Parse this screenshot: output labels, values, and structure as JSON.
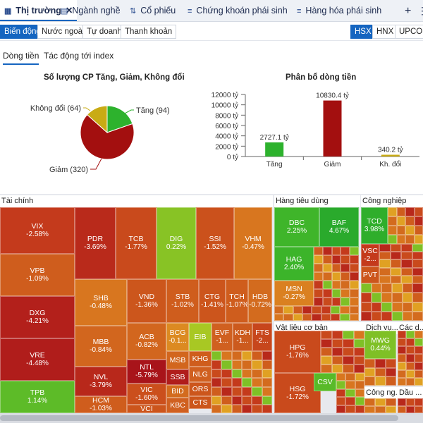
{
  "tabs": [
    {
      "label": "Thị trường",
      "icon": "grid-icon"
    },
    {
      "label": "Ngành nghề",
      "icon": "table-icon"
    },
    {
      "label": "Cổ phiếu",
      "icon": "sort-icon"
    },
    {
      "label": "Chứng khoán phái sinh",
      "icon": "list-number-icon"
    },
    {
      "label": "Hàng hóa phái sinh",
      "icon": "list-number-icon"
    }
  ],
  "add_tab": "+",
  "more": "⋮",
  "subnav": [
    "Biến động",
    "Nước ngoài",
    "Tự doanh",
    "Thanh khoản"
  ],
  "exchanges": [
    "HSX",
    "HNX",
    "UPCOM"
  ],
  "inner_tabs": [
    "Dòng tiền",
    "Tác động tới index"
  ],
  "pie": {
    "title": "Số lượng CP Tăng, Giảm, Không đổi",
    "labels": [
      "Tăng (94)",
      "Giảm (320)",
      "Không đổi (64)"
    ],
    "colors": {
      "tang": "#2db22d",
      "giam": "#a30f0f",
      "khongdoi": "#c9ab14"
    }
  },
  "chart_data": [
    {
      "type": "pie",
      "title": "Số lượng CP Tăng, Giảm, Không đổi",
      "categories": [
        "Tăng",
        "Giảm",
        "Không đổi"
      ],
      "values": [
        94,
        320,
        64
      ]
    },
    {
      "type": "bar",
      "title": "Phân bổ dòng tiền",
      "categories": [
        "Tăng",
        "Giảm",
        "Kh. đổi"
      ],
      "values": [
        2727.1,
        10830.4,
        340.2
      ],
      "data_labels": [
        "2727.1 tỷ",
        "10830.4 tỷ",
        "340.2 tỷ"
      ],
      "yticks": [
        "0 tỷ",
        "2000 tỷ",
        "4000 tỷ",
        "6000 tỷ",
        "8000 tỷ",
        "10000 tỷ",
        "12000 tỷ"
      ],
      "ylim": [
        0,
        12000
      ],
      "colors": [
        "#2db22d",
        "#a30f0f",
        "#c9ab14"
      ]
    }
  ],
  "sectors": [
    "Tài chính",
    "Hàng tiêu dùng",
    "Công nghiệp",
    "Vật liệu cơ bản",
    "Dịch vụ...",
    "Các d...",
    "Công ng...",
    "Dầu ..."
  ],
  "cells": [
    {
      "t": "VIX",
      "p": "-2.58%",
      "c": "#c43a1c"
    },
    {
      "t": "VPB",
      "p": "-1.09%",
      "c": "#cf5d1d"
    },
    {
      "t": "DXG",
      "p": "-4.21%",
      "c": "#b3201b"
    },
    {
      "t": "VRE",
      "p": "-4.48%",
      "c": "#b01d1b"
    },
    {
      "t": "TPB",
      "p": "1.14%",
      "c": "#5dbb28"
    },
    {
      "t": "PDR",
      "p": "-3.69%",
      "c": "#b92a1b"
    },
    {
      "t": "TCB",
      "p": "-1.77%",
      "c": "#c94a1c"
    },
    {
      "t": "DIG",
      "p": "0.22%",
      "c": "#88c325"
    },
    {
      "t": "SSI",
      "p": "-1.52%",
      "c": "#cb511c"
    },
    {
      "t": "VHM",
      "p": "-0.47%",
      "c": "#d8761f"
    },
    {
      "t": "SHB",
      "p": "-0.48%",
      "c": "#d8761f"
    },
    {
      "t": "VND",
      "p": "-1.36%",
      "c": "#cc561c"
    },
    {
      "t": "STB",
      "p": "-1.02%",
      "c": "#cf5d1d"
    },
    {
      "t": "CTG",
      "p": "-1.41%",
      "c": "#cc551c"
    },
    {
      "t": "TCH",
      "p": "-1.07%",
      "c": "#cf5d1d"
    },
    {
      "t": "HDB",
      "p": "-0.72%",
      "c": "#d36b1e"
    },
    {
      "t": "MBB",
      "p": "-0.84%",
      "c": "#d2661e"
    },
    {
      "t": "ACB",
      "p": "-0.82%",
      "c": "#d2661e"
    },
    {
      "t": "BCG",
      "p": "-0.1...",
      "c": "#dc8a21"
    },
    {
      "t": "EIB",
      "p": "",
      "c": "#a8c823"
    },
    {
      "t": "EVF",
      "p": "-1...",
      "c": "#d06020"
    },
    {
      "t": "KDH",
      "p": "-1...",
      "c": "#cc5a1d"
    },
    {
      "t": "FTS",
      "p": "-2...",
      "c": "#c7461c"
    },
    {
      "t": "NVL",
      "p": "-3.79%",
      "c": "#b8281b"
    },
    {
      "t": "NTL",
      "p": "-5.79%",
      "c": "#a8141a"
    },
    {
      "t": "MSB",
      "p": "",
      "c": "#d2661e"
    },
    {
      "t": "KHG",
      "p": "",
      "c": "#cf5d1d"
    },
    {
      "t": "VIC",
      "p": "-1.60%",
      "c": "#cb4f1c"
    },
    {
      "t": "SSB",
      "p": "",
      "c": "#b01d1b"
    },
    {
      "t": "NLG",
      "p": "",
      "c": "#d06020"
    },
    {
      "t": "HCM",
      "p": "-1.03%",
      "c": "#cf5d1d"
    },
    {
      "t": "VCI",
      "p": "-1.45%",
      "c": "#cc551c"
    },
    {
      "t": "BID",
      "p": "",
      "c": "#d36b1e"
    },
    {
      "t": "ORS",
      "p": "",
      "c": "#cc561c"
    },
    {
      "t": "HDG",
      "p": "-1.75%",
      "c": "#c94a1c"
    },
    {
      "t": "KBC",
      "p": "",
      "c": "#d06020"
    },
    {
      "t": "CTS",
      "p": "",
      "c": "#cc561c"
    },
    {
      "t": "HQC",
      "p": "",
      "c": "#d36b1e"
    },
    {
      "t": "DBC",
      "p": "2.25%",
      "c": "#3fb52a"
    },
    {
      "t": "BAF",
      "p": "4.67%",
      "c": "#2aaa2c"
    },
    {
      "t": "HAG",
      "p": "2.40%",
      "c": "#3cb42a"
    },
    {
      "t": "MSN",
      "p": "-0.27%",
      "c": "#da8020"
    },
    {
      "t": "TCD",
      "p": "3.98%",
      "c": "#2fae2b"
    },
    {
      "t": "VSC",
      "p": "-2...",
      "c": "#c43a1c"
    },
    {
      "t": "PVT",
      "p": "",
      "c": "#cc561c"
    },
    {
      "t": "HPG",
      "p": "-1.76%",
      "c": "#c94a1c"
    },
    {
      "t": "HSG",
      "p": "-1.72%",
      "c": "#c94a1c"
    },
    {
      "t": "MWG",
      "p": "0.44%",
      "c": "#7fc026"
    },
    {
      "t": "CSV",
      "p": "",
      "c": "#58ba28"
    }
  ]
}
